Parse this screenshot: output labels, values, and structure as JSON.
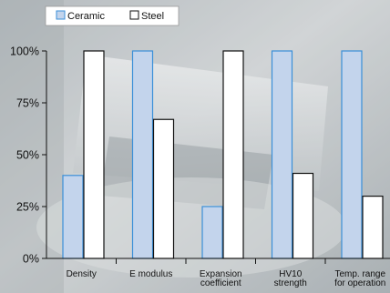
{
  "chart_data": {
    "type": "bar",
    "title": "",
    "xlabel": "",
    "ylabel": "",
    "categories": [
      [
        "Density"
      ],
      [
        "E modulus"
      ],
      [
        "Expansion",
        "coefficient"
      ],
      [
        "HV10",
        "strength"
      ],
      [
        "Temp. range",
        "for operation"
      ]
    ],
    "series": [
      {
        "name": "Ceramic",
        "values": [
          40,
          100,
          25,
          100,
          100
        ],
        "color": "#c3d4ec",
        "stroke": "#3a8fd8"
      },
      {
        "name": "Steel",
        "values": [
          100,
          67,
          100,
          41,
          30
        ],
        "color": "#ffffff",
        "stroke": "#111111"
      }
    ],
    "ylim": [
      0,
      100
    ],
    "yticks": [
      {
        "value": 0,
        "label": "0%"
      },
      {
        "value": 25,
        "label": "25%"
      },
      {
        "value": 50,
        "label": "50%"
      },
      {
        "value": 75,
        "label": "75%"
      },
      {
        "value": 100,
        "label": "100%"
      }
    ],
    "grid": false,
    "legend_position": "top-left"
  }
}
